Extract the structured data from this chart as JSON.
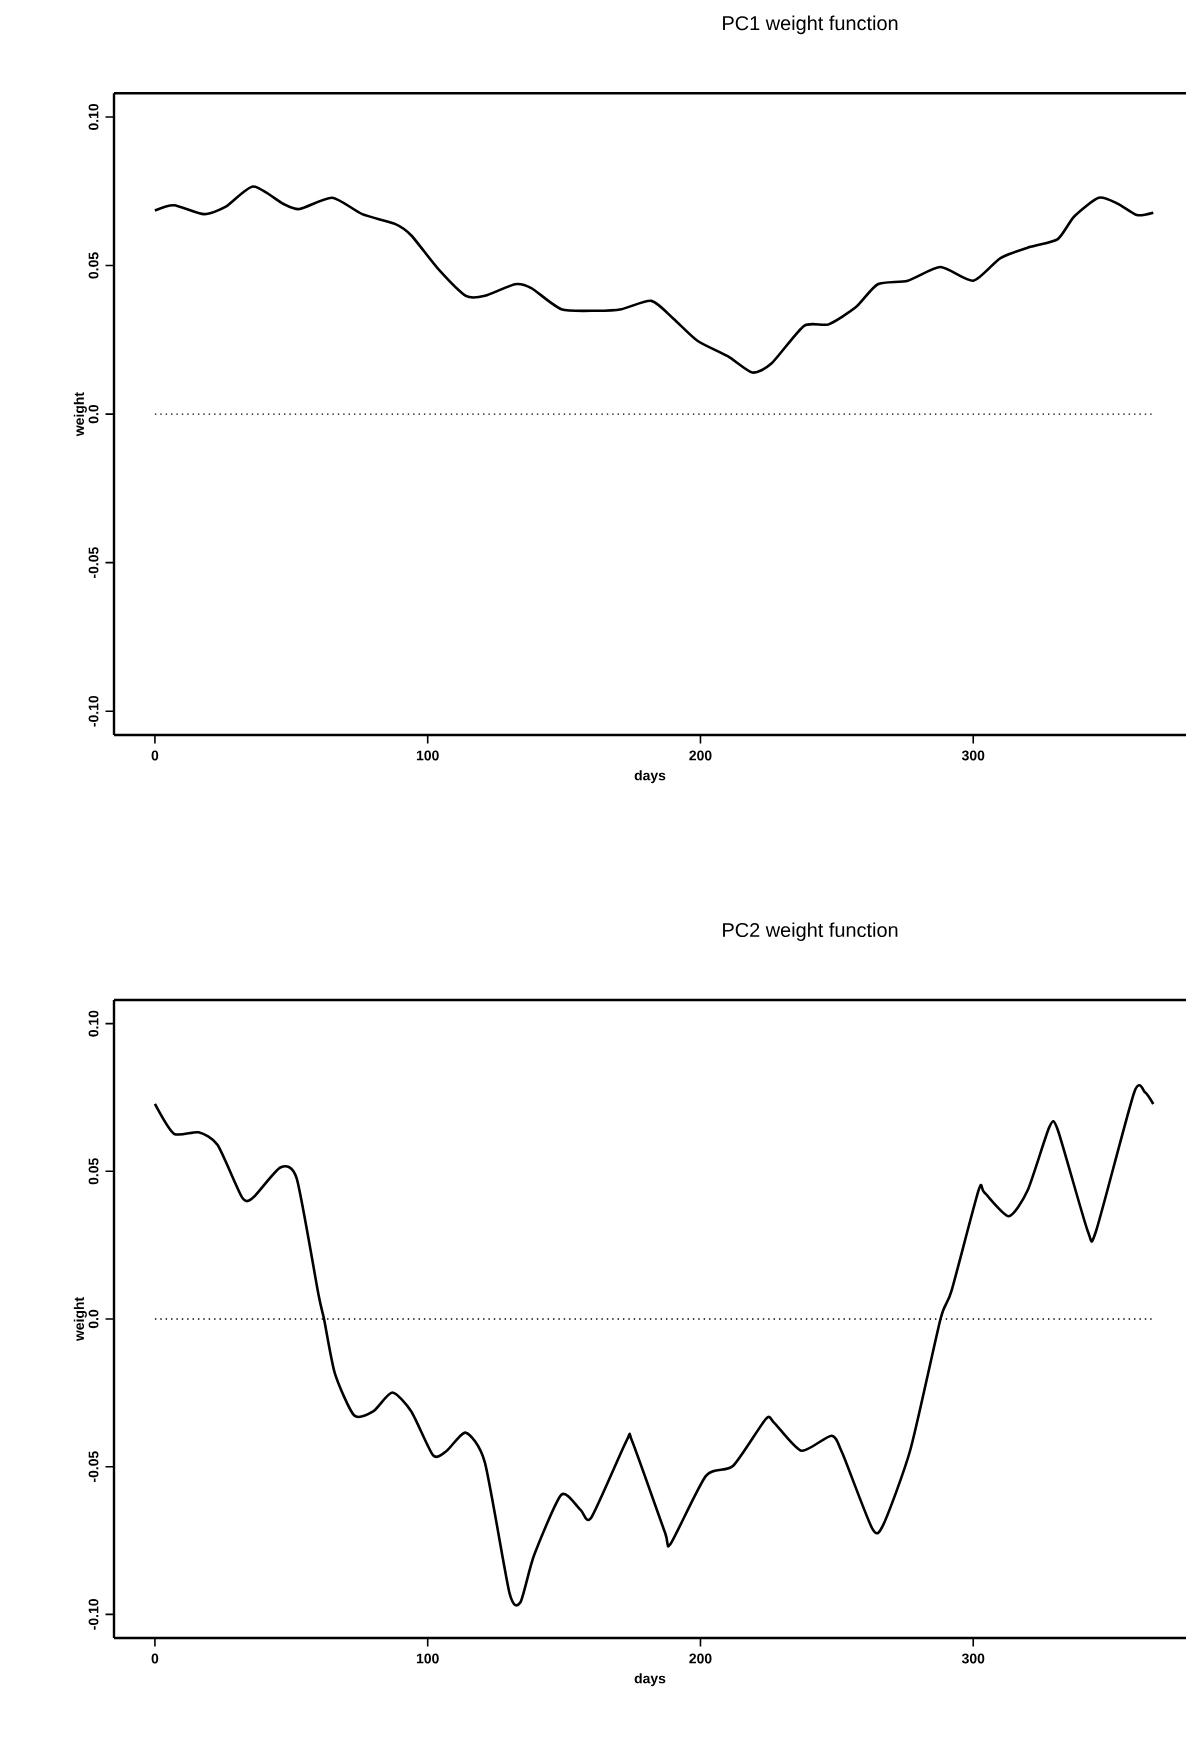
{
  "chart_data": [
    {
      "type": "line",
      "title": "PC1 weight function",
      "xlabel": "days",
      "ylabel": "weight",
      "color": "#000000",
      "x": [
        0,
        7,
        18,
        26,
        36,
        47,
        53,
        65,
        76,
        88,
        94,
        104,
        114,
        121,
        132,
        138,
        149,
        162,
        171,
        182,
        190,
        199,
        210,
        219,
        226,
        238,
        247,
        257,
        265,
        276,
        288,
        300,
        310,
        321,
        331,
        337,
        346,
        353,
        360,
        366
      ],
      "values": [
        0.0685,
        0.0703,
        0.0673,
        0.0698,
        0.0766,
        0.0708,
        0.069,
        0.0728,
        0.0673,
        0.064,
        0.0601,
        0.0487,
        0.0398,
        0.0398,
        0.0437,
        0.0424,
        0.0353,
        0.0348,
        0.0353,
        0.0381,
        0.0322,
        0.0246,
        0.0195,
        0.014,
        0.017,
        0.0297,
        0.0302,
        0.036,
        0.0437,
        0.0449,
        0.0495,
        0.0449,
        0.0525,
        0.0563,
        0.0589,
        0.0665,
        0.0728,
        0.0708,
        0.067,
        0.0678
      ],
      "xlim": [
        -15,
        378
      ],
      "ylim": [
        -0.108,
        0.108
      ],
      "xticks": [
        0,
        100,
        200,
        300
      ],
      "yticks": [
        {
          "value": -0.1,
          "label": "-0.10"
        },
        {
          "value": -0.05,
          "label": "-0.05"
        },
        {
          "value": 0,
          "label": "0.0"
        },
        {
          "value": 0.05,
          "label": "0.05"
        },
        {
          "value": 0.1,
          "label": "0.10"
        }
      ],
      "ref_lines": [
        {
          "axis": "y",
          "value": 0,
          "line_style": "dotted",
          "color": "#000000"
        }
      ]
    },
    {
      "type": "line",
      "title": "PC2 weight function",
      "xlabel": "days",
      "ylabel": "weight",
      "color": "#000000",
      "x": [
        0,
        7,
        16,
        23,
        32,
        36,
        46,
        52,
        60,
        62,
        66,
        73,
        80,
        87,
        94,
        102,
        107,
        114,
        121,
        130,
        134,
        139,
        149,
        156,
        160,
        173,
        175,
        187,
        189,
        202,
        212,
        224,
        227,
        237,
        248,
        252,
        263,
        267,
        277,
        288,
        292,
        302,
        304,
        313,
        320,
        328,
        331,
        342,
        345,
        359,
        363,
        366
      ],
      "values": [
        0.0728,
        0.0627,
        0.0632,
        0.0589,
        0.0411,
        0.0411,
        0.0513,
        0.0475,
        0.0081,
        0,
        -0.0185,
        -0.0326,
        -0.0313,
        -0.0249,
        -0.0313,
        -0.0462,
        -0.0446,
        -0.0385,
        -0.0487,
        -0.0928,
        -0.0959,
        -0.08,
        -0.0595,
        -0.0646,
        -0.0672,
        -0.041,
        -0.0415,
        -0.0723,
        -0.0762,
        -0.0531,
        -0.0497,
        -0.0338,
        -0.0351,
        -0.0446,
        -0.0395,
        -0.0454,
        -0.071,
        -0.0697,
        -0.0441,
        0,
        0.0094,
        0.0437,
        0.0429,
        0.0348,
        0.0437,
        0.0652,
        0.064,
        0.0297,
        0.0297,
        0.0767,
        0.0767,
        0.0728
      ],
      "xlim": [
        -15,
        378
      ],
      "ylim": [
        -0.108,
        0.108
      ],
      "xticks": [
        0,
        100,
        200,
        300
      ],
      "yticks": [
        {
          "value": -0.1,
          "label": "-0.10"
        },
        {
          "value": -0.05,
          "label": "-0.05"
        },
        {
          "value": 0,
          "label": "0.0"
        },
        {
          "value": 0.05,
          "label": "0.05"
        },
        {
          "value": 0.1,
          "label": "0.10"
        }
      ],
      "ref_lines": [
        {
          "axis": "y",
          "value": 0,
          "line_style": "dotted",
          "color": "#000000"
        }
      ]
    }
  ]
}
